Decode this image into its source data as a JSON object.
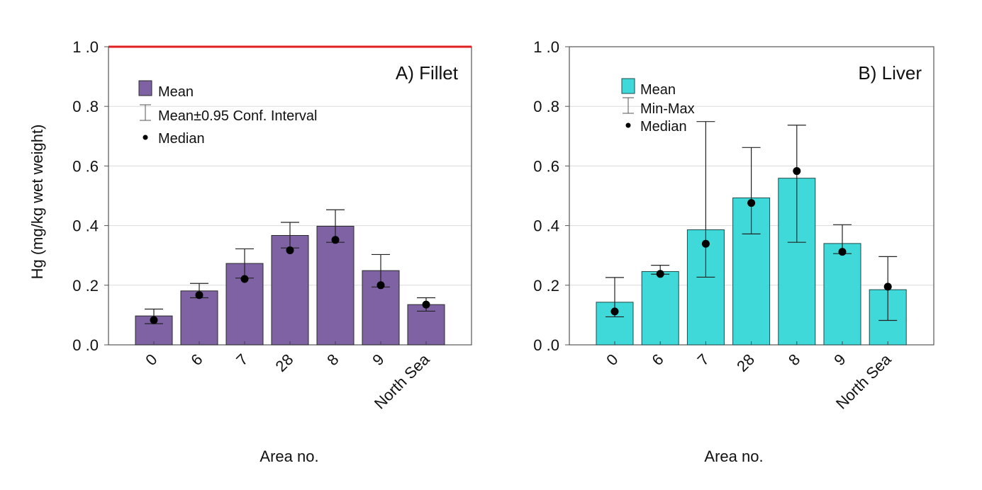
{
  "chart_data": [
    {
      "type": "bar",
      "panel": "A",
      "title": "A) Fillet",
      "xlabel": "Area no.",
      "ylabel": "Hg (mg/kg wet weight)",
      "ylim": [
        0,
        1.0
      ],
      "yticks": [
        "0.0",
        "0.2",
        "0.4",
        "0.6",
        "0.8",
        "1.0"
      ],
      "ytick_values": [
        0,
        0.2,
        0.4,
        0.6,
        0.8,
        1.0
      ],
      "grid": true,
      "categories": [
        "0",
        "6",
        "7",
        "28",
        "8",
        "9",
        "North Sea"
      ],
      "colors": {
        "bar": "#7f62a3",
        "bar_edge": "#2a2a2a",
        "reference_line": "#e02020",
        "error": "#222222",
        "median": "#000000"
      },
      "reference_line": {
        "y": 1.0
      },
      "legend": {
        "placement": "top-left",
        "entries": [
          "Mean",
          "Mean±0.95 Conf. Interval",
          "Median"
        ]
      },
      "series": [
        {
          "name": "Mean",
          "values": [
            0.097,
            0.181,
            0.273,
            0.367,
            0.398,
            0.249,
            0.135
          ]
        },
        {
          "name": "Median",
          "values": [
            0.083,
            0.167,
            0.221,
            0.317,
            0.352,
            0.2,
            0.135
          ]
        },
        {
          "name": "CI lower",
          "values": [
            0.071,
            0.158,
            0.224,
            0.325,
            0.344,
            0.194,
            0.113
          ]
        },
        {
          "name": "CI upper",
          "values": [
            0.12,
            0.206,
            0.322,
            0.411,
            0.453,
            0.303,
            0.158
          ]
        }
      ]
    },
    {
      "type": "bar",
      "panel": "B",
      "title": "B) Liver",
      "xlabel": "Area no.",
      "ylabel": "",
      "ylim": [
        0,
        1.0
      ],
      "yticks": [
        "0.0",
        "0.2",
        "0.4",
        "0.6",
        "0.8",
        "1.0"
      ],
      "ytick_values": [
        0,
        0.2,
        0.4,
        0.6,
        0.8,
        1.0
      ],
      "grid": true,
      "categories": [
        "0",
        "6",
        "7",
        "28",
        "8",
        "9",
        "North Sea"
      ],
      "colors": {
        "bar": "#40d9d9",
        "bar_edge": "#1f4a4a",
        "error": "#222222",
        "median": "#000000"
      },
      "legend": {
        "placement": "top-left",
        "entries": [
          "Mean",
          "Min-Max",
          "Median"
        ]
      },
      "series": [
        {
          "name": "Mean",
          "values": [
            0.143,
            0.246,
            0.386,
            0.493,
            0.559,
            0.34,
            0.185
          ]
        },
        {
          "name": "Median",
          "values": [
            0.112,
            0.238,
            0.339,
            0.476,
            0.583,
            0.312,
            0.195
          ]
        },
        {
          "name": "Min",
          "values": [
            0.094,
            0.237,
            0.227,
            0.372,
            0.344,
            0.306,
            0.082
          ]
        },
        {
          "name": "Max",
          "values": [
            0.226,
            0.267,
            0.749,
            0.662,
            0.737,
            0.403,
            0.296
          ]
        }
      ]
    }
  ]
}
